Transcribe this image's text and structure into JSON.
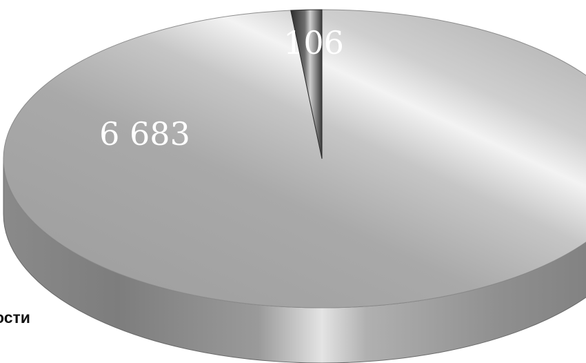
{
  "chart_data": {
    "type": "pie",
    "style": "3d",
    "slices": [
      {
        "label": "6 683",
        "value": 6683,
        "color": "#a6a6a6"
      },
      {
        "label": "106",
        "value": 106,
        "color": "#4a4a4a"
      }
    ]
  },
  "legend": {
    "partial_text": "ости"
  }
}
